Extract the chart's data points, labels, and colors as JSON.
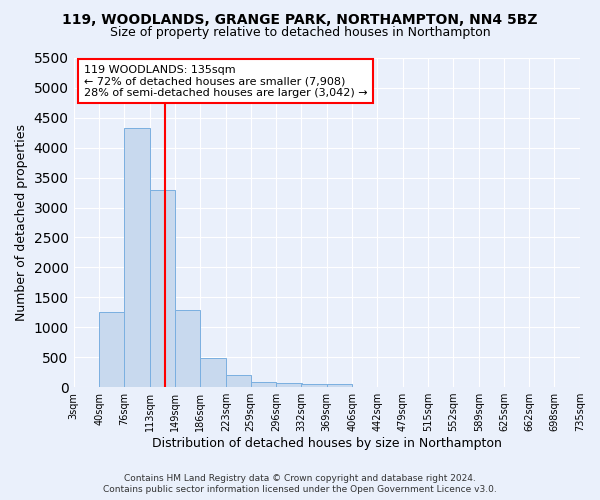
{
  "title_line1": "119, WOODLANDS, GRANGE PARK, NORTHAMPTON, NN4 5BZ",
  "title_line2": "Size of property relative to detached houses in Northampton",
  "xlabel": "Distribution of detached houses by size in Northampton",
  "ylabel": "Number of detached properties",
  "footer_line1": "Contains HM Land Registry data © Crown copyright and database right 2024.",
  "footer_line2": "Contains public sector information licensed under the Open Government Licence v3.0.",
  "bar_left_edges": [
    3,
    40,
    76,
    113,
    149,
    186,
    223,
    259,
    296,
    332,
    369,
    406,
    442,
    479,
    515,
    552,
    589,
    625,
    662,
    698
  ],
  "bar_heights": [
    0,
    1260,
    4330,
    3300,
    1280,
    480,
    210,
    90,
    70,
    55,
    55,
    0,
    0,
    0,
    0,
    0,
    0,
    0,
    0,
    0
  ],
  "bin_width": 37,
  "bar_color": "#c8d9ee",
  "bar_edge_color": "#7aafe0",
  "red_line_x": 135,
  "annotation_line1": "119 WOODLANDS: 135sqm",
  "annotation_line2": "← 72% of detached houses are smaller (7,908)",
  "annotation_line3": "28% of semi-detached houses are larger (3,042) →",
  "ylim": [
    0,
    5500
  ],
  "yticks": [
    0,
    500,
    1000,
    1500,
    2000,
    2500,
    3000,
    3500,
    4000,
    4500,
    5000,
    5500
  ],
  "tick_labels": [
    "3sqm",
    "40sqm",
    "76sqm",
    "113sqm",
    "149sqm",
    "186sqm",
    "223sqm",
    "259sqm",
    "296sqm",
    "332sqm",
    "369sqm",
    "406sqm",
    "442sqm",
    "479sqm",
    "515sqm",
    "552sqm",
    "589sqm",
    "625sqm",
    "662sqm",
    "698sqm",
    "735sqm"
  ],
  "background_color": "#eaf0fb",
  "plot_bg_color": "#eaf0fb",
  "grid_color": "#ffffff",
  "title_fontsize": 10,
  "subtitle_fontsize": 9,
  "axis_label_fontsize": 9,
  "tick_fontsize": 7,
  "footer_fontsize": 6.5,
  "annot_fontsize": 8
}
